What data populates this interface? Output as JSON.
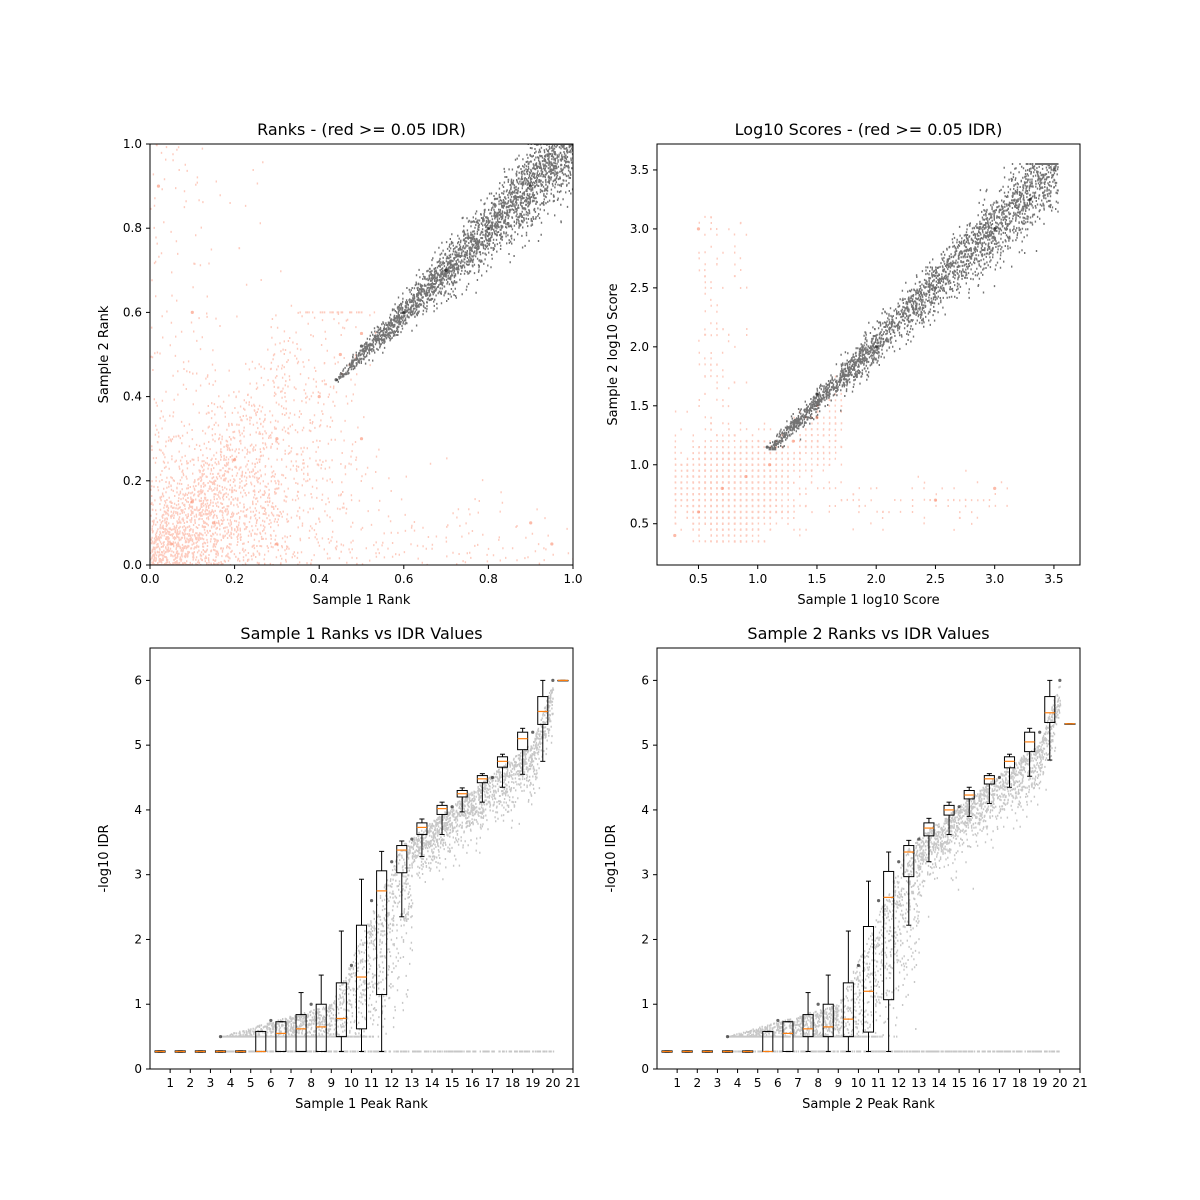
{
  "chart_data": [
    {
      "type": "scatter",
      "title": "Ranks - (red >= 0.05 IDR)",
      "xlabel": "Sample 1 Rank",
      "ylabel": "Sample 2 Rank",
      "xlim": [
        0.0,
        1.0
      ],
      "ylim": [
        0.0,
        1.0
      ],
      "xticks": [
        "0.0",
        "0.2",
        "0.4",
        "0.6",
        "0.8",
        "1.0"
      ],
      "yticks": [
        "0.0",
        "0.2",
        "0.4",
        "0.6",
        "0.8",
        "1.0"
      ],
      "grid": false,
      "series": [
        {
          "color": "#fa8c6e",
          "x": [
            0.05,
            0.1,
            0.15,
            0.2,
            0.3,
            0.4,
            0.45,
            0.5,
            0.02,
            0.9,
            0.95,
            0.1,
            0.3,
            0.5
          ],
          "y": [
            0.05,
            0.15,
            0.1,
            0.25,
            0.3,
            0.4,
            0.5,
            0.55,
            0.9,
            0.1,
            0.05,
            0.6,
            0.05,
            0.3
          ]
        },
        {
          "color": "#000000",
          "x": [
            0.44,
            0.5,
            0.6,
            0.7,
            0.8,
            0.9,
            1.0
          ],
          "y": [
            0.44,
            0.52,
            0.6,
            0.7,
            0.8,
            0.9,
            1.0
          ]
        }
      ]
    },
    {
      "type": "scatter",
      "title": "Log10 Scores - (red >= 0.05 IDR)",
      "xlabel": "Sample 1 log10 Score",
      "ylabel": "Sample 2 log10 Score",
      "xlim": [
        0.15,
        3.72
      ],
      "ylim": [
        0.15,
        3.72
      ],
      "xticks": [
        "0.5",
        "1.0",
        "1.5",
        "2.0",
        "2.5",
        "3.0",
        "3.5"
      ],
      "yticks": [
        "0.5",
        "1.0",
        "1.5",
        "2.0",
        "2.5",
        "3.0",
        "3.5"
      ],
      "grid": false,
      "series": [
        {
          "color": "#fa8c6e",
          "x": [
            0.3,
            0.5,
            0.7,
            0.9,
            1.1,
            1.3,
            1.5,
            0.5,
            2.5,
            3.0
          ],
          "y": [
            0.4,
            0.6,
            0.8,
            0.9,
            1.0,
            1.2,
            1.4,
            3.0,
            0.7,
            0.8
          ]
        },
        {
          "color": "#000000",
          "x": [
            1.08,
            1.5,
            2.0,
            2.5,
            3.0,
            3.3,
            3.5
          ],
          "y": [
            1.15,
            1.6,
            2.0,
            2.5,
            3.0,
            3.25,
            3.5
          ]
        }
      ]
    },
    {
      "type": "box",
      "title": "Sample 1 Ranks vs IDR Values",
      "xlabel": "Sample 1 Peak Rank",
      "ylabel": "-log10 IDR",
      "xlim": [
        0,
        21
      ],
      "ylim": [
        0,
        6.5
      ],
      "xticks": [
        "1",
        "2",
        "3",
        "4",
        "5",
        "6",
        "7",
        "8",
        "9",
        "10",
        "11",
        "12",
        "13",
        "14",
        "15",
        "16",
        "17",
        "18",
        "19",
        "20",
        "21"
      ],
      "yticks": [
        "0",
        "1",
        "2",
        "3",
        "4",
        "5",
        "6"
      ],
      "grid": false,
      "boxes": [
        {
          "x": 1,
          "median": 0.27,
          "q1": 0.26,
          "q3": 0.28,
          "low": 0.26,
          "high": 0.28
        },
        {
          "x": 2,
          "median": 0.27,
          "q1": 0.26,
          "q3": 0.28,
          "low": 0.26,
          "high": 0.28
        },
        {
          "x": 3,
          "median": 0.27,
          "q1": 0.26,
          "q3": 0.28,
          "low": 0.26,
          "high": 0.28
        },
        {
          "x": 4,
          "median": 0.27,
          "q1": 0.26,
          "q3": 0.28,
          "low": 0.26,
          "high": 0.28
        },
        {
          "x": 5,
          "median": 0.27,
          "q1": 0.26,
          "q3": 0.28,
          "low": 0.26,
          "high": 0.28
        },
        {
          "x": 6,
          "median": 0.27,
          "q1": 0.27,
          "q3": 0.58,
          "low": 0.27,
          "high": 0.58
        },
        {
          "x": 7,
          "median": 0.55,
          "q1": 0.27,
          "q3": 0.73,
          "low": 0.27,
          "high": 0.73
        },
        {
          "x": 8,
          "median": 0.62,
          "q1": 0.27,
          "q3": 0.84,
          "low": 0.27,
          "high": 1.18
        },
        {
          "x": 9,
          "median": 0.65,
          "q1": 0.27,
          "q3": 1.0,
          "low": 0.27,
          "high": 1.45
        },
        {
          "x": 10,
          "median": 0.78,
          "q1": 0.5,
          "q3": 1.33,
          "low": 0.27,
          "high": 2.13
        },
        {
          "x": 11,
          "median": 1.42,
          "q1": 0.62,
          "q3": 2.22,
          "low": 0.27,
          "high": 2.93
        },
        {
          "x": 12,
          "median": 2.75,
          "q1": 1.15,
          "q3": 3.06,
          "low": 0.27,
          "high": 3.36
        },
        {
          "x": 13,
          "median": 3.38,
          "q1": 3.03,
          "q3": 3.45,
          "low": 2.35,
          "high": 3.52
        },
        {
          "x": 14,
          "median": 3.73,
          "q1": 3.62,
          "q3": 3.8,
          "low": 3.28,
          "high": 3.86
        },
        {
          "x": 15,
          "median": 4.02,
          "q1": 3.93,
          "q3": 4.07,
          "low": 3.62,
          "high": 4.12
        },
        {
          "x": 16,
          "median": 4.25,
          "q1": 4.2,
          "q3": 4.3,
          "low": 3.97,
          "high": 4.34
        },
        {
          "x": 17,
          "median": 4.48,
          "q1": 4.42,
          "q3": 4.53,
          "low": 4.12,
          "high": 4.56
        },
        {
          "x": 18,
          "median": 4.75,
          "q1": 4.66,
          "q3": 4.82,
          "low": 4.35,
          "high": 4.86
        },
        {
          "x": 19,
          "median": 5.1,
          "q1": 4.93,
          "q3": 5.2,
          "low": 4.55,
          "high": 5.26
        },
        {
          "x": 20,
          "median": 5.52,
          "q1": 5.32,
          "q3": 5.75,
          "low": 4.75,
          "high": 6.0
        },
        {
          "x": 21,
          "median": 6.0,
          "q1": 6.0,
          "q3": 6.0,
          "low": 6.0,
          "high": 6.0
        }
      ],
      "series": [
        {
          "color": "#000000",
          "x": [
            3.5,
            6,
            8,
            10,
            11,
            12,
            13,
            15,
            17,
            19,
            20
          ],
          "y": [
            0.5,
            0.75,
            1.0,
            1.6,
            2.6,
            3.2,
            3.55,
            4.05,
            4.5,
            5.2,
            6.0
          ]
        }
      ]
    },
    {
      "type": "box",
      "title": "Sample 2 Ranks vs IDR Values",
      "xlabel": "Sample 2 Peak Rank",
      "ylabel": "-log10 IDR",
      "xlim": [
        0,
        21
      ],
      "ylim": [
        0,
        6.5
      ],
      "xticks": [
        "1",
        "2",
        "3",
        "4",
        "5",
        "6",
        "7",
        "8",
        "9",
        "10",
        "11",
        "12",
        "13",
        "14",
        "15",
        "16",
        "17",
        "18",
        "19",
        "20",
        "21"
      ],
      "yticks": [
        "0",
        "1",
        "2",
        "3",
        "4",
        "5",
        "6"
      ],
      "grid": false,
      "boxes": [
        {
          "x": 1,
          "median": 0.27,
          "q1": 0.26,
          "q3": 0.28,
          "low": 0.26,
          "high": 0.28
        },
        {
          "x": 2,
          "median": 0.27,
          "q1": 0.26,
          "q3": 0.28,
          "low": 0.26,
          "high": 0.28
        },
        {
          "x": 3,
          "median": 0.27,
          "q1": 0.26,
          "q3": 0.28,
          "low": 0.26,
          "high": 0.28
        },
        {
          "x": 4,
          "median": 0.27,
          "q1": 0.26,
          "q3": 0.28,
          "low": 0.26,
          "high": 0.28
        },
        {
          "x": 5,
          "median": 0.27,
          "q1": 0.26,
          "q3": 0.28,
          "low": 0.26,
          "high": 0.28
        },
        {
          "x": 6,
          "median": 0.27,
          "q1": 0.27,
          "q3": 0.58,
          "low": 0.27,
          "high": 0.58
        },
        {
          "x": 7,
          "median": 0.55,
          "q1": 0.27,
          "q3": 0.73,
          "low": 0.27,
          "high": 0.73
        },
        {
          "x": 8,
          "median": 0.62,
          "q1": 0.5,
          "q3": 0.84,
          "low": 0.27,
          "high": 1.18
        },
        {
          "x": 9,
          "median": 0.65,
          "q1": 0.5,
          "q3": 1.0,
          "low": 0.27,
          "high": 1.45
        },
        {
          "x": 10,
          "median": 0.77,
          "q1": 0.5,
          "q3": 1.33,
          "low": 0.27,
          "high": 2.13
        },
        {
          "x": 11,
          "median": 1.2,
          "q1": 0.57,
          "q3": 2.2,
          "low": 0.27,
          "high": 2.9
        },
        {
          "x": 12,
          "median": 2.65,
          "q1": 1.07,
          "q3": 3.05,
          "low": 0.27,
          "high": 3.35
        },
        {
          "x": 13,
          "median": 3.35,
          "q1": 2.97,
          "q3": 3.45,
          "low": 2.22,
          "high": 3.53
        },
        {
          "x": 14,
          "median": 3.72,
          "q1": 3.6,
          "q3": 3.8,
          "low": 3.2,
          "high": 3.87
        },
        {
          "x": 15,
          "median": 4.0,
          "q1": 3.92,
          "q3": 4.07,
          "low": 3.62,
          "high": 4.12
        },
        {
          "x": 16,
          "median": 4.23,
          "q1": 4.17,
          "q3": 4.3,
          "low": 3.9,
          "high": 4.35
        },
        {
          "x": 17,
          "median": 4.48,
          "q1": 4.4,
          "q3": 4.53,
          "low": 4.1,
          "high": 4.56
        },
        {
          "x": 18,
          "median": 4.75,
          "q1": 4.65,
          "q3": 4.82,
          "low": 4.35,
          "high": 4.86
        },
        {
          "x": 19,
          "median": 5.05,
          "q1": 4.9,
          "q3": 5.2,
          "low": 4.52,
          "high": 5.26
        },
        {
          "x": 20,
          "median": 5.5,
          "q1": 5.35,
          "q3": 5.75,
          "low": 4.77,
          "high": 6.0
        },
        {
          "x": 21,
          "median": 5.33,
          "q1": 5.33,
          "q3": 5.33,
          "low": 5.33,
          "high": 5.33
        }
      ],
      "series": [
        {
          "color": "#000000",
          "x": [
            3.5,
            6,
            8,
            10,
            11,
            12,
            13,
            15,
            17,
            19,
            20
          ],
          "y": [
            0.5,
            0.75,
            1.0,
            1.6,
            2.6,
            3.2,
            3.55,
            4.05,
            4.5,
            5.2,
            6.0
          ]
        }
      ]
    }
  ]
}
